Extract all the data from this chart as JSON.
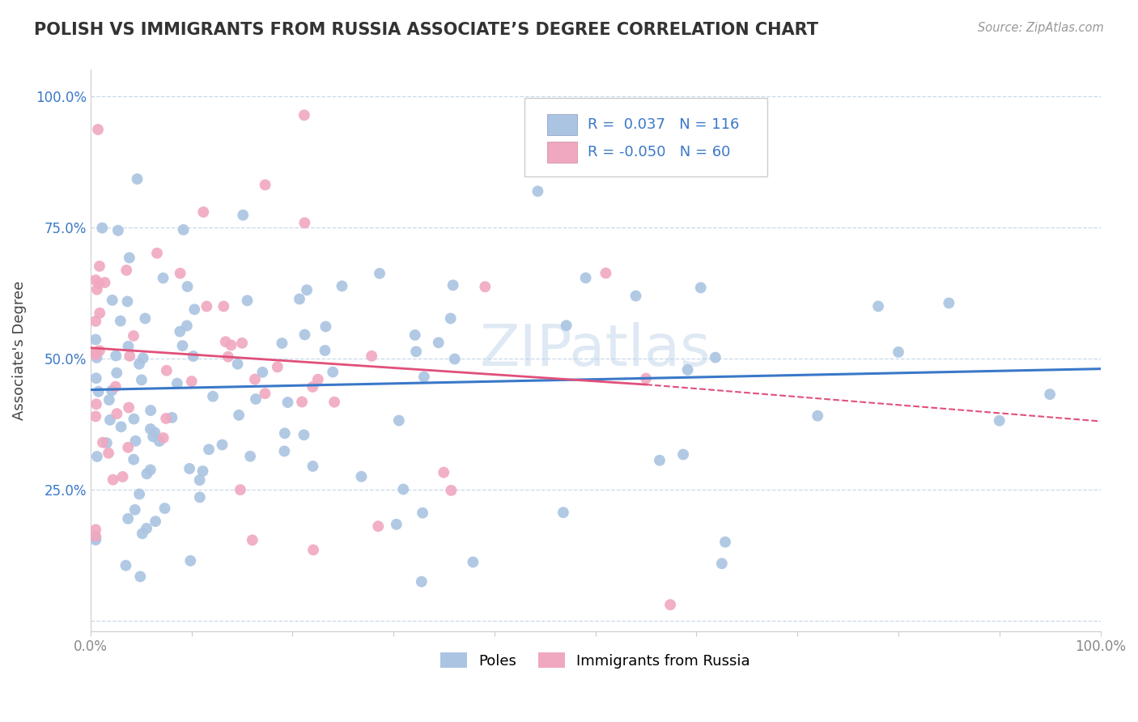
{
  "title": "POLISH VS IMMIGRANTS FROM RUSSIA ASSOCIATE’S DEGREE CORRELATION CHART",
  "source": "Source: ZipAtlas.com",
  "ylabel": "Associate's Degree",
  "watermark": "ZIPatlas",
  "legend_blue_r": "0.037",
  "legend_blue_n": "116",
  "legend_pink_r": "-0.050",
  "legend_pink_n": "60",
  "blue_color": "#aac4e2",
  "pink_color": "#f0a8c0",
  "blue_line_color": "#3a78c9",
  "pink_line_color": "#e0507a",
  "background_color": "#ffffff",
  "grid_color": "#c8d8ea",
  "yticks": [
    0.0,
    0.25,
    0.5,
    0.75,
    1.0
  ],
  "ytick_labels": [
    "",
    "25.0%",
    "50.0%",
    "75.0%",
    "100.0%"
  ],
  "xlim": [
    0.0,
    1.0
  ],
  "ylim": [
    -0.02,
    1.05
  ]
}
